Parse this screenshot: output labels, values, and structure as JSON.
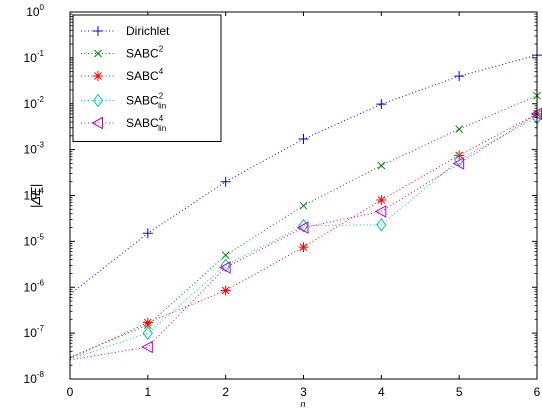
{
  "chart_data": {
    "type": "scatter",
    "title": "",
    "xlabel": "n",
    "ylabel": "|ΔE|",
    "xlim": [
      0,
      6
    ],
    "ylim": [
      1e-08,
      1
    ],
    "yscale": "log",
    "grid": false,
    "legend_position": "top-left",
    "x_ticks": [
      "0",
      "1",
      "2",
      "3",
      "4",
      "5",
      "6"
    ],
    "y_ticks": [
      {
        "base": "10",
        "exp": "-8"
      },
      {
        "base": "10",
        "exp": "-7"
      },
      {
        "base": "10",
        "exp": "-6"
      },
      {
        "base": "10",
        "exp": "-5"
      },
      {
        "base": "10",
        "exp": "-4"
      },
      {
        "base": "10",
        "exp": "-3"
      },
      {
        "base": "10",
        "exp": "-2"
      },
      {
        "base": "10",
        "exp": "-1"
      },
      {
        "base": "10",
        "exp": "0"
      }
    ],
    "series": [
      {
        "name": "Dirichlet",
        "label_main": "Dirichlet",
        "label_sup": "",
        "label_sub": "",
        "color": "#0000ff",
        "marker": "plus",
        "line_x": [
          0,
          1,
          2,
          3,
          4,
          5,
          6
        ],
        "line_y": [
          7e-07,
          1.5e-05,
          0.0002,
          0.0017,
          0.0098,
          0.04,
          0.115
        ],
        "x": [
          1,
          2,
          3,
          4,
          5,
          6
        ],
        "y": [
          1.5e-05,
          0.0002,
          0.0017,
          0.0098,
          0.04,
          0.115
        ]
      },
      {
        "name": "SABC^2",
        "label_main": "SABC",
        "label_sup": "2",
        "label_sub": "",
        "color": "#008000",
        "marker": "x",
        "line_x": [
          0,
          1,
          2,
          3,
          4,
          5,
          6
        ],
        "line_y": [
          3e-08,
          1.5e-07,
          5e-06,
          6e-05,
          0.00045,
          0.0028,
          0.015
        ],
        "x": [
          1,
          2,
          3,
          4,
          5,
          6
        ],
        "y": [
          1.5e-07,
          5e-06,
          6e-05,
          0.00045,
          0.0028,
          0.015
        ]
      },
      {
        "name": "SABC^4",
        "label_main": "SABC",
        "label_sup": "4",
        "label_sub": "",
        "color": "#ff0000",
        "marker": "star",
        "line_x": [
          0,
          1,
          2,
          3,
          4,
          5,
          6
        ],
        "line_y": [
          2.8e-08,
          1.7e-07,
          8.5e-07,
          7.5e-06,
          8e-05,
          0.00075,
          0.006
        ],
        "x": [
          1,
          2,
          3,
          4,
          5,
          6
        ],
        "y": [
          1.7e-07,
          8.5e-07,
          7.5e-06,
          8e-05,
          0.00075,
          0.006
        ]
      },
      {
        "name": "SABC^2_lin",
        "label_main": "SABC",
        "label_sup": "2",
        "label_sub": "lin",
        "color": "#00bfbf",
        "marker": "diamond",
        "line_x": [
          0,
          1,
          2,
          3,
          4,
          5,
          6
        ],
        "line_y": [
          2.7e-08,
          1e-07,
          3e-06,
          2.2e-05,
          2.3e-05,
          0.0006,
          0.005
        ],
        "x": [
          1,
          2,
          3,
          4,
          5,
          6
        ],
        "y": [
          1e-07,
          3e-06,
          2.2e-05,
          2.3e-05,
          0.0006,
          0.005
        ]
      },
      {
        "name": "SABC^4_lin",
        "label_main": "SABC",
        "label_sup": "4",
        "label_sub": "lin",
        "color": "#bf00bf",
        "marker": "triangle-left",
        "line_x": [
          0,
          1,
          2,
          3,
          4,
          5,
          6
        ],
        "line_y": [
          2.6e-08,
          5e-08,
          2.7e-06,
          2e-05,
          4.5e-05,
          0.0005,
          0.006
        ],
        "x": [
          1,
          2,
          3,
          4,
          5,
          6
        ],
        "y": [
          5e-08,
          2.7e-06,
          2e-05,
          4.5e-05,
          0.0005,
          0.006
        ]
      }
    ]
  }
}
